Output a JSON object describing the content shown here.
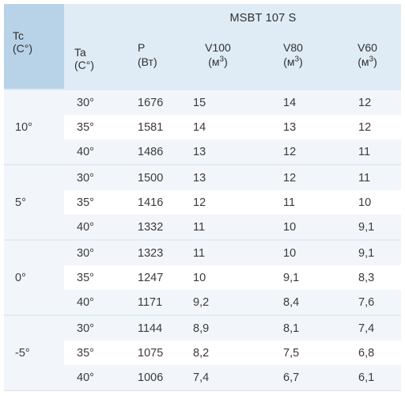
{
  "header": {
    "tc_label": "Tc",
    "tc_unit": "(C°)",
    "ta_label": "Ta",
    "ta_unit": "(C°)",
    "model_title": "MSBT 107 S",
    "p_label": "P",
    "p_unit": "(Вт)",
    "v100_label": "V100",
    "v80_label": "V80",
    "v60_label": "V60",
    "volume_unit_prefix": "(м",
    "volume_unit_exp": "3",
    "volume_unit_suffix": ")"
  },
  "groups": [
    {
      "tc": "10°",
      "rows": [
        {
          "ta": "30°",
          "p": "1676",
          "v100": "15",
          "v80": "14",
          "v60": "12"
        },
        {
          "ta": "35°",
          "p": "1581",
          "v100": "14",
          "v80": "13",
          "v60": "12"
        },
        {
          "ta": "40°",
          "p": "1486",
          "v100": "13",
          "v80": "12",
          "v60": "11"
        }
      ]
    },
    {
      "tc": "5°",
      "rows": [
        {
          "ta": "30°",
          "p": "1500",
          "v100": "13",
          "v80": "12",
          "v60": "11"
        },
        {
          "ta": "35°",
          "p": "1416",
          "v100": "12",
          "v80": "11",
          "v60": "10"
        },
        {
          "ta": "40°",
          "p": "1332",
          "v100": "11",
          "v80": "10",
          "v60": "9,1"
        }
      ]
    },
    {
      "tc": "0°",
      "rows": [
        {
          "ta": "30°",
          "p": "1323",
          "v100": "11",
          "v80": "10",
          "v60": "9,1"
        },
        {
          "ta": "35°",
          "p": "1247",
          "v100": "10",
          "v80": "9,1",
          "v60": "8,3"
        },
        {
          "ta": "40°",
          "p": "1171",
          "v100": "9,2",
          "v80": "8,4",
          "v60": "7,6"
        }
      ]
    },
    {
      "tc": "-5°",
      "rows": [
        {
          "ta": "30°",
          "p": "1144",
          "v100": "8,9",
          "v80": "8,1",
          "v60": "7,4"
        },
        {
          "ta": "35°",
          "p": "1075",
          "v100": "8,2",
          "v80": "7,5",
          "v60": "6,8"
        },
        {
          "ta": "40°",
          "p": "1006",
          "v100": "7,4",
          "v80": "6,7",
          "v60": "6,1"
        }
      ]
    }
  ],
  "colors": {
    "header_dark": "#b8d3e8",
    "header_light": "#dfebf5",
    "row_alt": "#f2f6fa",
    "text": "#3a3a3a"
  }
}
